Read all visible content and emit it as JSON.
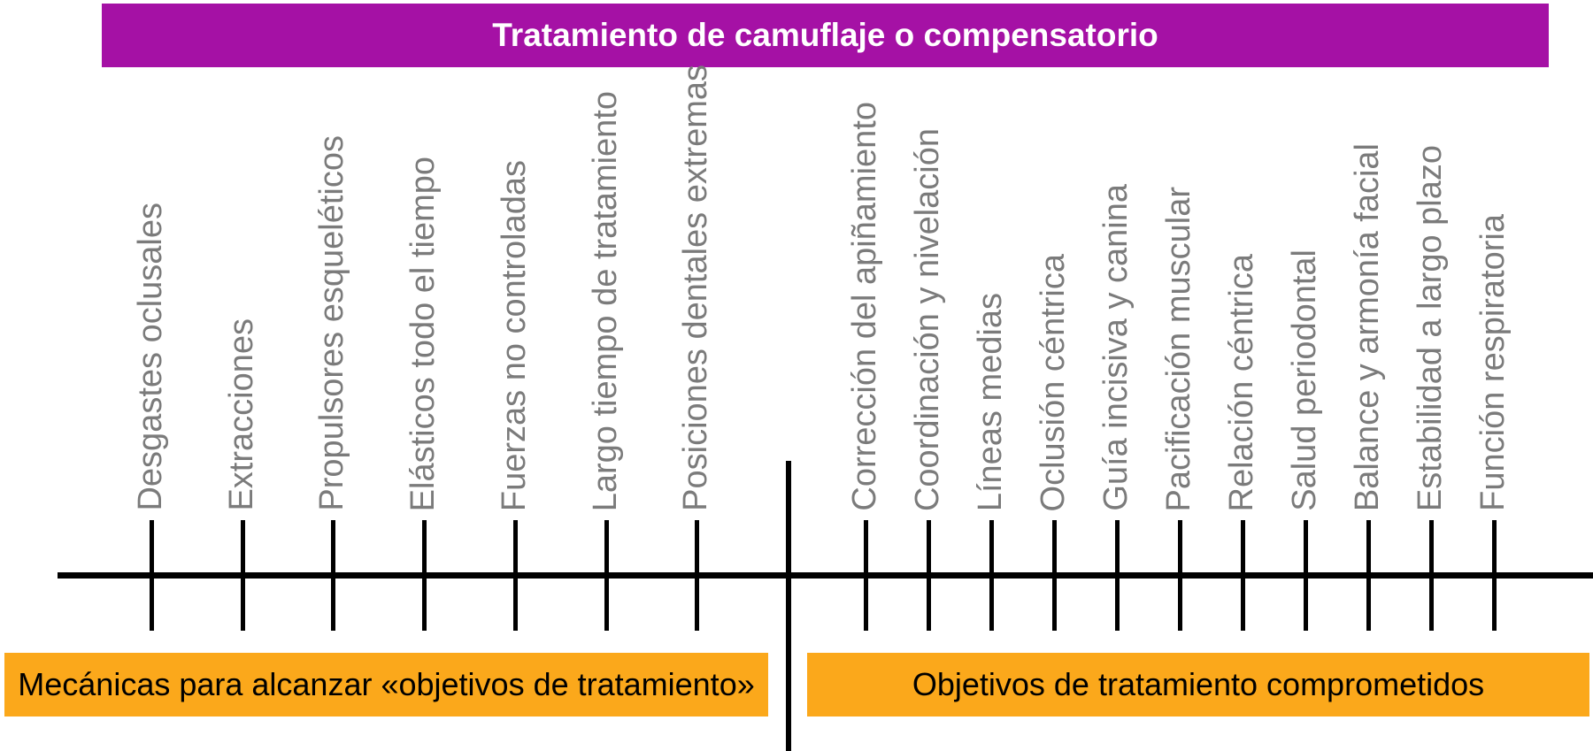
{
  "title_banner": {
    "label": "Tratamiento de camuflaje o compensatorio",
    "bg_color": "#A511A5",
    "text_color": "#FFFFFF"
  },
  "axis": {
    "left_items": [
      "Desgastes oclusales",
      "Extracciones",
      "Propulsores esqueléticos",
      "Elásticos todo el tiempo",
      "Fuerzas no controladas",
      "Largo tiempo de tratamiento",
      "Posiciones dentales extremas"
    ],
    "right_items": [
      "Corrección del apiñamiento",
      "Coordinación y nivelación",
      "Líneas medias",
      "Oclusión céntrica",
      "Guía incisiva y canina",
      "Pacificación muscular",
      "Relación céntrica",
      "Salud periodontal",
      "Balance y armonía facial",
      "Estabilidad a largo plazo",
      "Función respiratoria"
    ],
    "label_color": "#7B7B7B",
    "line_color": "#000000"
  },
  "bottom_banners": {
    "left_label": "Mecánicas para alcanzar «objetivos de tratamiento»",
    "right_label": "Objetivos de tratamiento comprometidos",
    "bg_color": "#FBA81B",
    "text_color": "#000000"
  }
}
